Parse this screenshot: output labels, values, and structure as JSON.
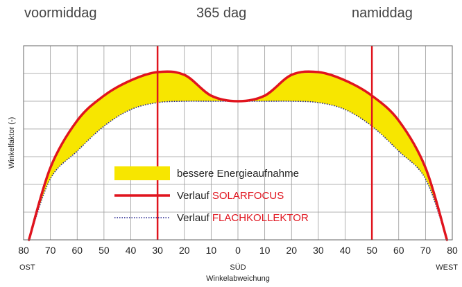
{
  "header": {
    "left": "voormiddag",
    "center": "365 dag",
    "right": "namiddag"
  },
  "chart_data": {
    "type": "line",
    "xlabel": "Winkelabweichung",
    "ylabel": "Winkelfaktor (-)",
    "x_tick_labels": [
      "80",
      "70",
      "60",
      "50",
      "40",
      "30",
      "20",
      "10",
      "0",
      "10",
      "20",
      "30",
      "40",
      "50",
      "60",
      "70",
      "80"
    ],
    "direction_labels": {
      "left": "OST",
      "center": "SÜD",
      "right": "WEST"
    },
    "x": [
      -78,
      -70,
      -60,
      -50,
      -40,
      -30,
      -20,
      -10,
      0,
      10,
      20,
      30,
      40,
      50,
      60,
      70,
      78
    ],
    "series": [
      {
        "name": "Verlauf SOLARFOCUS",
        "color": "#e0141e",
        "values": [
          0.0,
          2.6,
          4.3,
          5.2,
          5.75,
          6.05,
          5.95,
          5.2,
          5.0,
          5.2,
          5.95,
          6.05,
          5.75,
          5.2,
          4.3,
          2.6,
          0.0
        ]
      },
      {
        "name": "Verlauf FLACHKOLLEKTOR",
        "color": "#20208c",
        "values": [
          0.0,
          2.2,
          3.2,
          4.1,
          4.7,
          4.95,
          5.0,
          5.0,
          5.0,
          5.0,
          5.0,
          4.95,
          4.7,
          4.1,
          3.2,
          2.2,
          0.0
        ]
      }
    ],
    "vertical_markers": [
      -30,
      50
    ],
    "fill_between": {
      "name": "bessere Energieaufnahme",
      "color": "#f7e600"
    },
    "legend": [
      {
        "kind": "area",
        "text": "bessere Energieaufnahme",
        "text_red": ""
      },
      {
        "kind": "solid",
        "text": "Verlauf ",
        "text_red": "SOLARFOCUS"
      },
      {
        "kind": "dotted",
        "text": "Verlauf ",
        "text_red": "FLACHKOLLEKTOR"
      }
    ],
    "xlim": [
      -80,
      80
    ],
    "ylim": [
      0,
      7
    ],
    "grid": true,
    "legend_position": "bottom-center"
  }
}
